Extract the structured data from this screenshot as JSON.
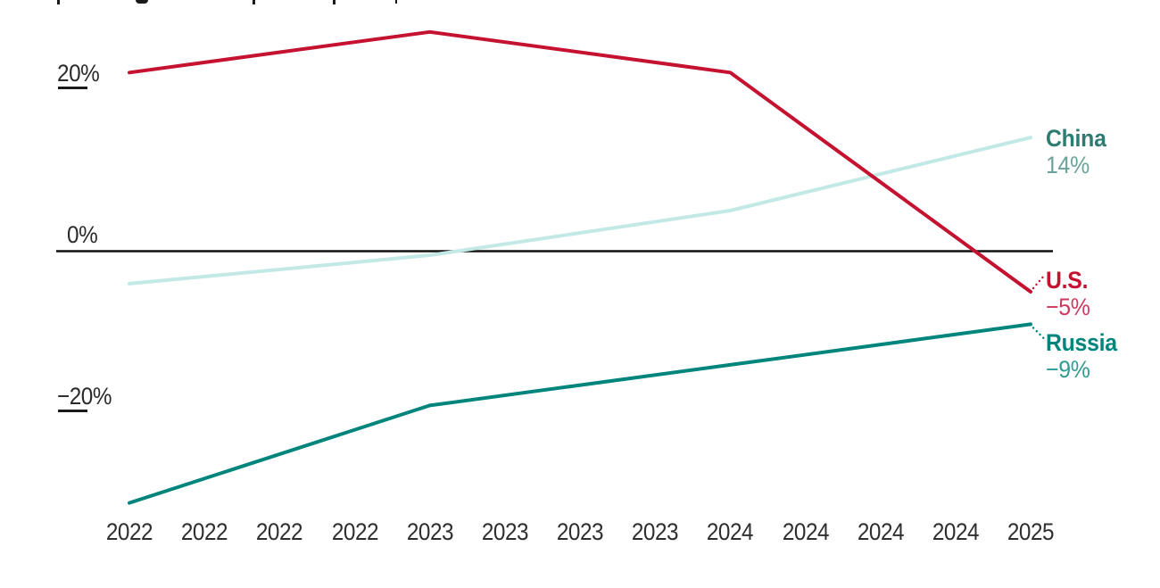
{
  "chart_data": {
    "type": "line",
    "x": [
      2022,
      2023,
      2024,
      2025
    ],
    "x_axis_tick_labels": [
      "2022",
      "2022",
      "2022",
      "2022",
      "2023",
      "2023",
      "2023",
      "2023",
      "2024",
      "2024",
      "2024",
      "2024",
      "2025"
    ],
    "y_ticks": [
      {
        "label": "20%",
        "value": 20
      },
      {
        "label": "0%",
        "value": 0
      },
      {
        "label": "−20%",
        "value": -20
      }
    ],
    "ylim": [
      -33,
      28
    ],
    "grid": "zero-baseline-only",
    "baseline_color": "#111111",
    "legend_position": "right-of-line-ends",
    "series": [
      {
        "name": "China",
        "values": [
          -4,
          -0.5,
          5,
          14
        ],
        "end_value_label": "14%",
        "line_color": "#c2e9e5",
        "name_color": "#2e7b72",
        "value_color": "#6aa29b",
        "leader_dots": false
      },
      {
        "name": "U.S.",
        "values": [
          22,
          27,
          22,
          -5
        ],
        "end_value_label": "−5%",
        "line_color": "#c41230",
        "name_color": "#c41230",
        "value_color": "#ce3a5f",
        "leader_dots": true
      },
      {
        "name": "Russia",
        "values": [
          -31,
          -19,
          -14,
          -9
        ],
        "end_value_label": "−9%",
        "line_color": "#00857c",
        "name_color": "#00857c",
        "value_color": "#2f9c93",
        "leader_dots": true
      }
    ]
  }
}
